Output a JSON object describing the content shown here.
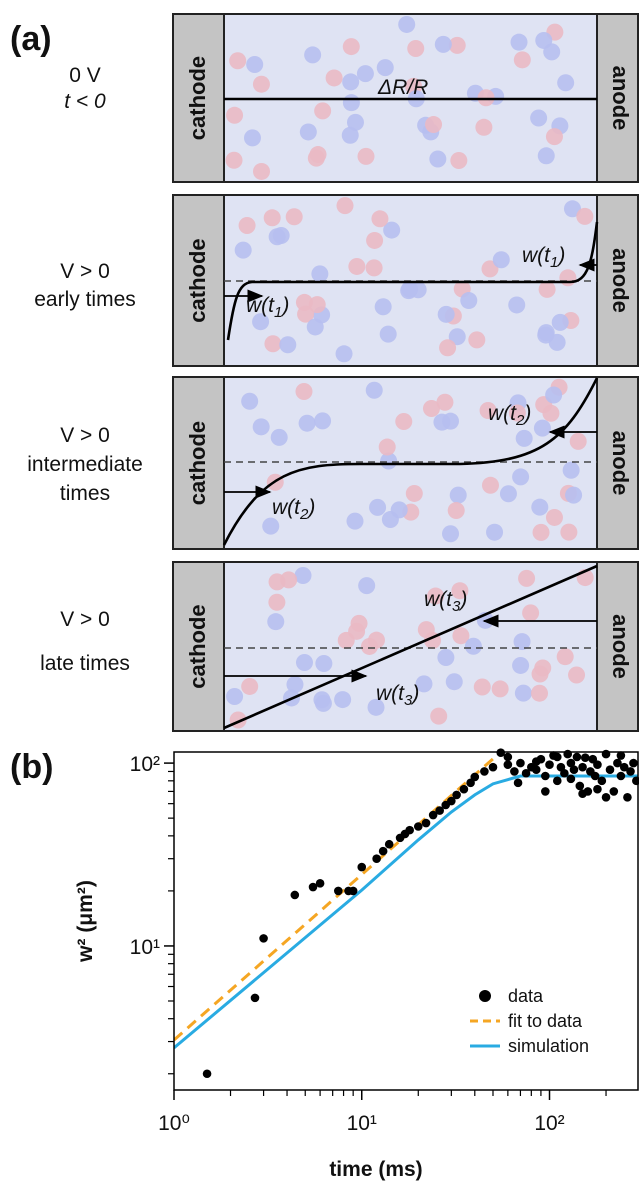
{
  "panel_a": {
    "label": "(a)",
    "electrodes": {
      "left": "cathode",
      "right": "anode"
    },
    "rows": [
      {
        "label": [
          "0 V",
          "t < 0"
        ],
        "annotations": [
          [
            "ΔR/R"
          ]
        ]
      },
      {
        "label": [
          "V > 0",
          "early times"
        ],
        "annotations": [
          [
            "w(t",
            "1",
            ")"
          ],
          [
            "w(t",
            "1",
            ")"
          ]
        ]
      },
      {
        "label": [
          "V > 0",
          "intermediate",
          "times"
        ],
        "annotations": [
          [
            "w(t",
            "2",
            ")"
          ],
          [
            "w(t",
            "2",
            ")"
          ]
        ]
      },
      {
        "label": [
          "V > 0",
          "late times"
        ],
        "annotations": [
          [
            "w(t",
            "3",
            ")"
          ],
          [
            "w(t",
            "3",
            ")"
          ]
        ]
      }
    ]
  },
  "chart_data": {
    "type": "scatter",
    "label": "(b)",
    "xlabel": "time (ms)",
    "ylabel": "w² (μm²)",
    "xscale": "log",
    "yscale": "log",
    "xlim": [
      1,
      296
    ],
    "ylim": [
      1.63,
      115
    ],
    "xticks": [
      {
        "value": 1,
        "label": "10⁰"
      },
      {
        "value": 10,
        "label": "10¹"
      },
      {
        "value": 100,
        "label": "10²"
      }
    ],
    "yticks": [
      {
        "value": 10,
        "label": "10¹"
      },
      {
        "value": 100,
        "label": "10²"
      }
    ],
    "xminorticks": [
      2,
      3,
      4,
      5,
      6,
      7,
      8,
      9,
      20,
      30,
      40,
      50,
      60,
      70,
      80,
      90,
      200
    ],
    "yminorticks": [
      2,
      3,
      4,
      5,
      6,
      7,
      8,
      9,
      20,
      30,
      40,
      50,
      60,
      70,
      80,
      90
    ],
    "legend": "lower right",
    "series": [
      {
        "name": "data",
        "kind": "scatter",
        "color": "#000000",
        "x": [
          1.5,
          2.7,
          3.0,
          4.4,
          5.5,
          6.0,
          7.5,
          8.5,
          9.0,
          10,
          12,
          13,
          14,
          16,
          17,
          18,
          20,
          22,
          24,
          26,
          28,
          30,
          32,
          35,
          38,
          40,
          45,
          50,
          55,
          60,
          60,
          65,
          68,
          70,
          75,
          80,
          85,
          85,
          90,
          95,
          95,
          100,
          105,
          110,
          110,
          115,
          120,
          125,
          130,
          130,
          135,
          140,
          145,
          150,
          150,
          155,
          160,
          165,
          170,
          175,
          180,
          180,
          190,
          200,
          200,
          210,
          220,
          230,
          240,
          240,
          250,
          260,
          270,
          280,
          290
        ],
        "values": [
          2.0,
          5.2,
          11,
          19,
          21,
          22,
          20,
          20,
          20,
          27,
          30,
          33,
          36,
          39,
          41,
          43,
          45,
          47,
          52,
          55,
          59,
          62,
          67,
          72,
          78,
          84,
          90,
          95,
          114,
          98,
          108,
          90,
          78,
          100,
          88,
          95,
          92,
          102,
          105,
          70,
          85,
          98,
          110,
          80,
          108,
          95,
          88,
          112,
          100,
          82,
          92,
          108,
          75,
          95,
          68,
          107,
          70,
          90,
          105,
          85,
          98,
          72,
          80,
          112,
          65,
          92,
          70,
          100,
          85,
          110,
          95,
          65,
          90,
          100,
          80
        ]
      },
      {
        "name": "fit to data",
        "kind": "line",
        "dash": true,
        "color": "#f5a623",
        "x": [
          1,
          55
        ],
        "values": [
          3.06,
          115
        ]
      },
      {
        "name": "simulation",
        "kind": "line",
        "dash": false,
        "color": "#29abe2",
        "x": [
          1,
          5,
          10,
          20,
          30,
          40,
          50,
          70,
          100,
          200,
          296
        ],
        "values": [
          2.77,
          11.1,
          20.2,
          38,
          54,
          67,
          77,
          85,
          85,
          85,
          85
        ]
      }
    ]
  }
}
